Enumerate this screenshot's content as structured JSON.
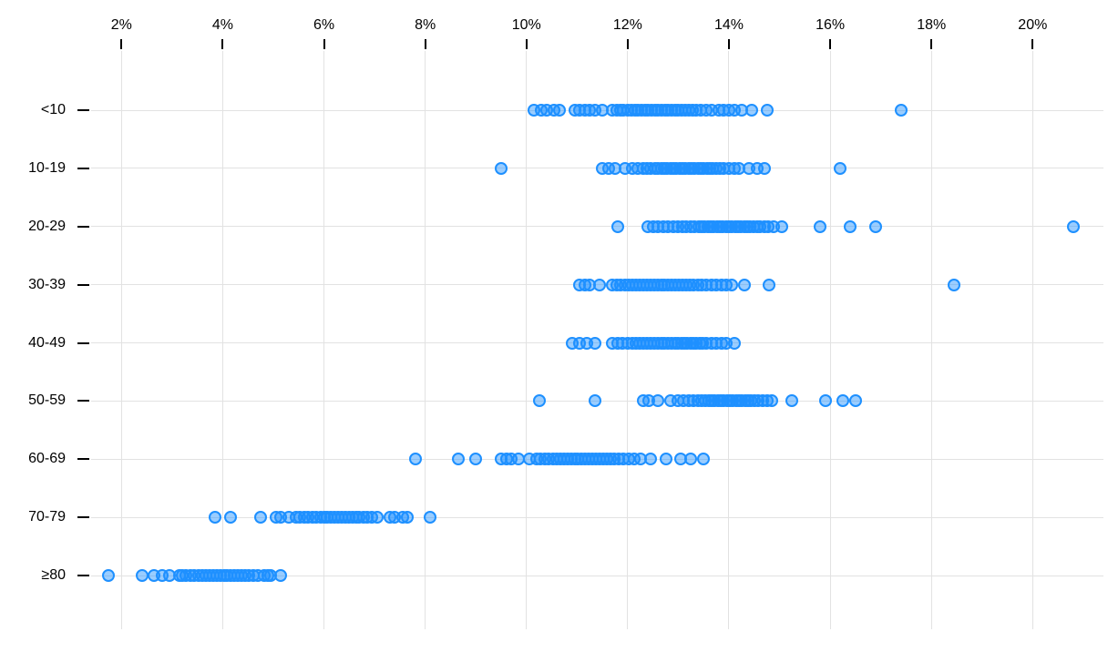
{
  "chart_data": {
    "type": "scatter",
    "subtype": "strip-dot-plot",
    "title": "",
    "xlabel": "",
    "ylabel": "",
    "grid": true,
    "legend": "none",
    "x_axis_position": "top",
    "x_tick_values": [
      2,
      4,
      6,
      8,
      10,
      12,
      14,
      16,
      18,
      20
    ],
    "x_tick_labels": [
      "2%",
      "4%",
      "6%",
      "8%",
      "10%",
      "12%",
      "14%",
      "16%",
      "18%",
      "20%"
    ],
    "xlim": [
      0,
      21.5
    ],
    "categories": [
      "<10",
      "10-19",
      "20-29",
      "30-39",
      "40-49",
      "50-59",
      "60-69",
      "70-79",
      "≥80"
    ],
    "marker": {
      "shape": "circle",
      "stroke": "#1e90ff",
      "fill": "#1e90ff",
      "fill_opacity": 0.45
    },
    "grid_color": "#e2e2e2",
    "text_color": "#000000",
    "series": [
      {
        "name": "<10",
        "values": [
          10.15,
          10.3,
          10.4,
          10.55,
          10.65,
          10.95,
          11.05,
          11.15,
          11.25,
          11.35,
          11.5,
          11.7,
          11.78,
          11.85,
          11.92,
          12.0,
          12.07,
          12.14,
          12.2,
          12.27,
          12.34,
          12.4,
          12.47,
          12.54,
          12.6,
          12.67,
          12.74,
          12.8,
          12.87,
          12.94,
          13.0,
          13.07,
          13.14,
          13.2,
          13.28,
          13.36,
          13.45,
          13.55,
          13.65,
          13.8,
          13.9,
          14.0,
          14.1,
          14.25,
          14.45,
          14.75,
          17.4
        ]
      },
      {
        "name": "10-19",
        "values": [
          9.5,
          11.5,
          11.62,
          11.75,
          11.95,
          12.1,
          12.2,
          12.3,
          12.38,
          12.46,
          12.54,
          12.6,
          12.66,
          12.72,
          12.78,
          12.84,
          12.9,
          12.96,
          13.02,
          13.08,
          13.14,
          13.2,
          13.26,
          13.32,
          13.38,
          13.44,
          13.5,
          13.56,
          13.62,
          13.68,
          13.75,
          13.82,
          13.9,
          14.0,
          14.1,
          14.2,
          14.4,
          14.55,
          14.7,
          16.2
        ]
      },
      {
        "name": "20-29",
        "values": [
          11.8,
          12.4,
          12.5,
          12.6,
          12.7,
          12.8,
          12.9,
          13.0,
          13.08,
          13.16,
          13.24,
          13.32,
          13.4,
          13.46,
          13.52,
          13.58,
          13.64,
          13.7,
          13.76,
          13.82,
          13.88,
          13.94,
          14.0,
          14.06,
          14.12,
          14.18,
          14.24,
          14.3,
          14.36,
          14.42,
          14.48,
          14.55,
          14.62,
          14.7,
          14.78,
          14.88,
          15.05,
          15.8,
          16.4,
          16.9,
          20.8
        ]
      },
      {
        "name": "30-39",
        "values": [
          11.05,
          11.15,
          11.25,
          11.45,
          11.7,
          11.78,
          11.86,
          11.94,
          12.02,
          12.1,
          12.17,
          12.24,
          12.31,
          12.38,
          12.45,
          12.52,
          12.59,
          12.66,
          12.73,
          12.8,
          12.87,
          12.94,
          13.01,
          13.08,
          13.15,
          13.22,
          13.3,
          13.38,
          13.46,
          13.55,
          13.65,
          13.75,
          13.85,
          13.95,
          14.05,
          14.3,
          14.8,
          18.45
        ]
      },
      {
        "name": "40-49",
        "values": [
          10.9,
          11.05,
          11.2,
          11.35,
          11.7,
          11.8,
          11.9,
          12.0,
          12.1,
          12.17,
          12.24,
          12.31,
          12.38,
          12.45,
          12.52,
          12.59,
          12.66,
          12.73,
          12.8,
          12.87,
          12.94,
          13.0,
          13.06,
          13.12,
          13.18,
          13.24,
          13.3,
          13.36,
          13.42,
          13.48,
          13.55,
          13.65,
          13.75,
          13.85,
          13.95,
          14.1
        ]
      },
      {
        "name": "50-59",
        "values": [
          10.25,
          11.35,
          12.3,
          12.42,
          12.6,
          12.85,
          13.0,
          13.1,
          13.2,
          13.3,
          13.38,
          13.46,
          13.54,
          13.6,
          13.66,
          13.72,
          13.78,
          13.84,
          13.9,
          13.96,
          14.02,
          14.08,
          14.14,
          14.2,
          14.26,
          14.32,
          14.38,
          14.44,
          14.5,
          14.58,
          14.66,
          14.75,
          14.85,
          15.25,
          15.9,
          16.25,
          16.5
        ]
      },
      {
        "name": "60-69",
        "values": [
          7.8,
          8.65,
          9.0,
          9.5,
          9.6,
          9.7,
          9.85,
          10.05,
          10.2,
          10.28,
          10.36,
          10.44,
          10.52,
          10.6,
          10.67,
          10.74,
          10.81,
          10.88,
          10.95,
          11.02,
          11.09,
          11.16,
          11.23,
          11.3,
          11.37,
          11.44,
          11.51,
          11.58,
          11.66,
          11.74,
          11.82,
          11.92,
          12.02,
          12.12,
          12.25,
          12.45,
          12.75,
          13.05,
          13.25,
          13.5
        ]
      },
      {
        "name": "70-79",
        "values": [
          3.85,
          4.15,
          4.75,
          5.05,
          5.15,
          5.3,
          5.45,
          5.53,
          5.61,
          5.69,
          5.77,
          5.85,
          5.93,
          6.0,
          6.07,
          6.14,
          6.21,
          6.28,
          6.35,
          6.42,
          6.49,
          6.56,
          6.63,
          6.7,
          6.78,
          6.86,
          6.95,
          7.05,
          7.3,
          7.4,
          7.55,
          7.65,
          8.1
        ]
      },
      {
        "name": "≥80",
        "values": [
          1.75,
          2.4,
          2.65,
          2.8,
          2.95,
          3.15,
          3.2,
          3.28,
          3.36,
          3.44,
          3.52,
          3.6,
          3.67,
          3.74,
          3.81,
          3.88,
          3.95,
          4.02,
          4.09,
          4.16,
          4.23,
          4.3,
          4.37,
          4.44,
          4.52,
          4.6,
          4.7,
          4.82,
          4.9,
          4.95,
          5.15
        ]
      }
    ]
  }
}
